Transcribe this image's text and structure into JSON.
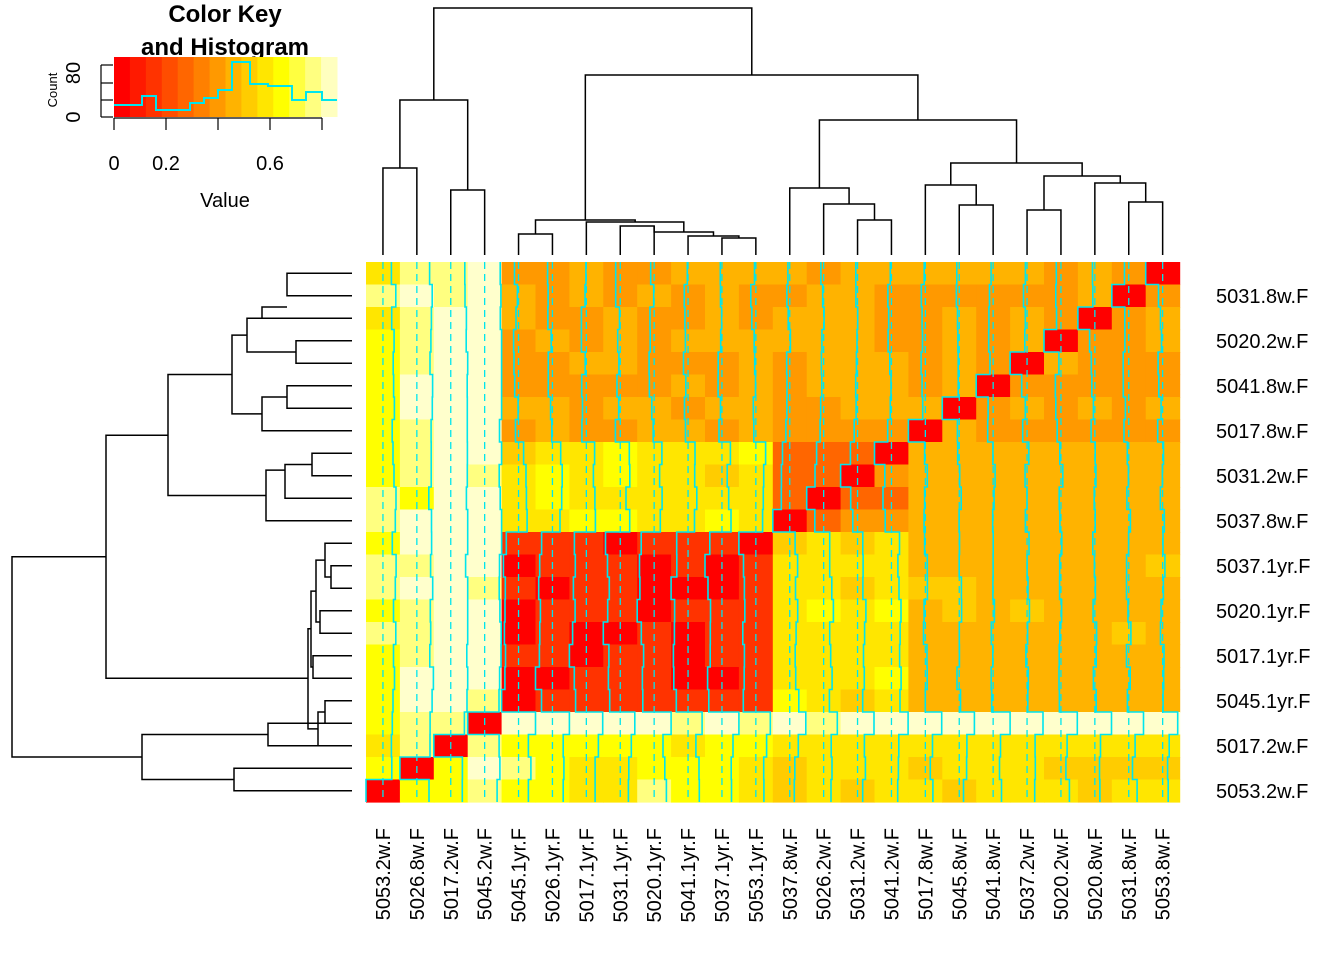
{
  "chart_data": {
    "type": "heatmap",
    "title": "",
    "color_key": {
      "title_line1": "Color Key",
      "title_line2": "and Histogram",
      "xlabel": "Value",
      "ylabel": "Count",
      "x_ticks": [
        "0",
        "0.2",
        "0.6"
      ],
      "y_ticks": [
        "0",
        "80"
      ],
      "xlim": [
        0,
        0.85
      ],
      "colors": [
        "#ff0000",
        "#ff3300",
        "#ff6600",
        "#ff9900",
        "#ffcc00",
        "#ffff00",
        "#ffff80"
      ],
      "histogram_color": "#00e5ee"
    },
    "trace_color": "#00e5ee",
    "row_labels": [
      "5031.8w.F",
      "5020.2w.F",
      "5041.8w.F",
      "5017.8w.F",
      "5031.2w.F",
      "5037.8w.F",
      "5037.1yr.F",
      "5020.1yr.F",
      "5017.1yr.F",
      "5045.1yr.F",
      "5017.2w.F",
      "5053.2w.F"
    ],
    "col_labels": [
      "5053.2w.F",
      "5026.8w.F",
      "5017.2w.F",
      "5045.2w.F",
      "5045.1yr.F",
      "5026.1yr.F",
      "5017.1yr.F",
      "5031.1yr.F",
      "5020.1yr.F",
      "5041.1yr.F",
      "5037.1yr.F",
      "5053.1yr.F",
      "5037.8w.F",
      "5026.2w.F",
      "5031.2w.F",
      "5041.2w.F",
      "5017.8w.F",
      "5045.8w.F",
      "5041.8w.F",
      "5037.2w.F",
      "5020.2w.F",
      "5020.8w.F",
      "5031.8w.F",
      "5053.8w.F"
    ]
  }
}
